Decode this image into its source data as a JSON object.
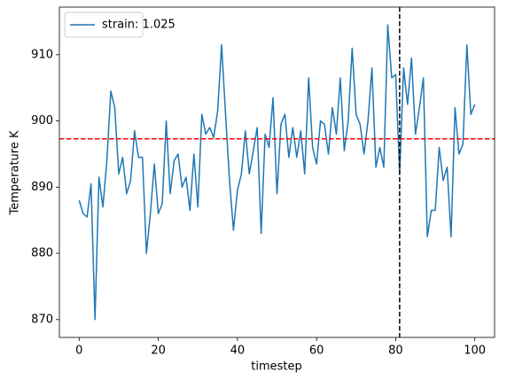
{
  "chart_data": {
    "type": "line",
    "x_label": "timestep",
    "y_label": "Temperature K",
    "x": [
      0,
      1,
      2,
      3,
      4,
      5,
      6,
      7,
      8,
      9,
      10,
      11,
      12,
      13,
      14,
      15,
      16,
      17,
      18,
      19,
      20,
      21,
      22,
      23,
      24,
      25,
      26,
      27,
      28,
      29,
      30,
      31,
      32,
      33,
      34,
      35,
      36,
      37,
      38,
      39,
      40,
      41,
      42,
      43,
      44,
      45,
      46,
      47,
      48,
      49,
      50,
      51,
      52,
      53,
      54,
      55,
      56,
      57,
      58,
      59,
      60,
      61,
      62,
      63,
      64,
      65,
      66,
      67,
      68,
      69,
      70,
      71,
      72,
      73,
      74,
      75,
      76,
      77,
      78,
      79,
      80,
      81,
      82,
      83,
      84,
      85,
      86,
      87,
      88,
      89,
      90,
      91,
      92,
      93,
      94,
      95,
      96,
      97,
      98,
      99,
      100
    ],
    "series": [
      {
        "name": "strain: 1.025",
        "color": "#1f77b4",
        "values": [
          888,
          886,
          885.5,
          890.5,
          870,
          891.5,
          887,
          894,
          904.5,
          902,
          892,
          894.5,
          889,
          891,
          898.5,
          894.5,
          894.5,
          880,
          886,
          893.5,
          886,
          887.5,
          900,
          889,
          894,
          895,
          890,
          891.5,
          886.5,
          895,
          887,
          901,
          898,
          899,
          897.5,
          901.5,
          911.5,
          901,
          891,
          883.5,
          889.5,
          892,
          898.5,
          892,
          895.5,
          899,
          883,
          898,
          896,
          903.5,
          889,
          899.5,
          901,
          894.5,
          899,
          894.5,
          898.5,
          892,
          906.5,
          896,
          893.5,
          900,
          899.5,
          895,
          902,
          898,
          906.5,
          895.5,
          900,
          911,
          901,
          899.5,
          895,
          900,
          908,
          893,
          896,
          893,
          914.5,
          906.5,
          907,
          892,
          908,
          902.5,
          909.5,
          898,
          902,
          906.5,
          882.5,
          886.5,
          886.5,
          896,
          891,
          893,
          882.5,
          902,
          895,
          896.5,
          911.5,
          901,
          902.5
        ]
      }
    ],
    "reference_lines": [
      {
        "axis": "y",
        "value": 897.3,
        "color": "#ff0000"
      },
      {
        "axis": "x",
        "value": 81,
        "color": "#000000"
      }
    ],
    "xlim": [
      -5,
      105
    ],
    "ylim": [
      867.3,
      917.2
    ],
    "xticks": [
      0,
      20,
      40,
      60,
      80,
      100
    ],
    "yticks": [
      870,
      880,
      890,
      900,
      910
    ],
    "legend": "upper left"
  }
}
